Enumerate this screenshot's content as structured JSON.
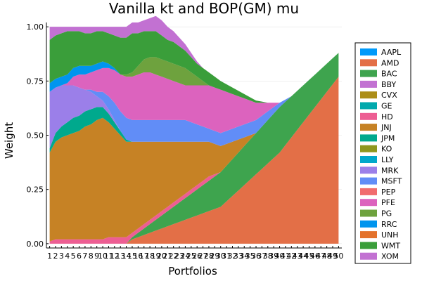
{
  "chart_data": {
    "type": "area",
    "title": "Vanilla kt and BOP(GM) mu",
    "xlabel": "Portfolios",
    "ylabel": "Weight",
    "ylim": [
      0,
      1
    ],
    "y_ticks": [
      "0.00",
      "0.25",
      "0.50",
      "0.75",
      "1.00"
    ],
    "x": [
      1,
      2,
      3,
      4,
      5,
      6,
      7,
      8,
      9,
      10,
      11,
      12,
      13,
      14,
      15,
      16,
      17,
      18,
      19,
      20,
      21,
      22,
      23,
      24,
      25,
      26,
      27,
      28,
      29,
      30,
      31,
      32,
      33,
      34,
      35,
      36,
      37,
      38,
      39,
      40,
      41,
      42,
      43,
      44,
      45,
      46,
      47,
      48,
      49,
      50
    ],
    "grid": true,
    "legend_position": "right",
    "series": [
      {
        "name": "AAPL",
        "color": "#009AFA",
        "values": [
          0,
          0,
          0,
          0,
          0,
          0,
          0,
          0,
          0,
          0,
          0,
          0,
          0,
          0,
          0,
          0,
          0,
          0,
          0,
          0,
          0,
          0,
          0,
          0,
          0,
          0,
          0,
          0,
          0,
          0,
          0,
          0,
          0,
          0,
          0,
          0,
          0,
          0,
          0,
          0,
          0,
          0,
          0,
          0,
          0,
          0,
          0,
          0,
          0,
          0
        ]
      },
      {
        "name": "AMD",
        "color": "#E36F47",
        "values": [
          0,
          0,
          0,
          0,
          0,
          0,
          0,
          0,
          0,
          0,
          0,
          0,
          0,
          0,
          0.02,
          0.03,
          0.04,
          0.05,
          0.06,
          0.07,
          0.08,
          0.09,
          0.1,
          0.11,
          0.12,
          0.13,
          0.14,
          0.15,
          0.16,
          0.17,
          0.195,
          0.22,
          0.245,
          0.27,
          0.295,
          0.32,
          0.345,
          0.37,
          0.395,
          0.42,
          0.455,
          0.49,
          0.525,
          0.56,
          0.595,
          0.63,
          0.665,
          0.7,
          0.735,
          0.77
        ]
      },
      {
        "name": "BAC",
        "color": "#3EA44E",
        "values": [
          0,
          0,
          0,
          0,
          0,
          0,
          0,
          0,
          0,
          0,
          0,
          0,
          0,
          0,
          0.01,
          0.02,
          0.03,
          0.04,
          0.05,
          0.06,
          0.07,
          0.08,
          0.09,
          0.1,
          0.11,
          0.12,
          0.13,
          0.14,
          0.15,
          0.16,
          0.165,
          0.17,
          0.175,
          0.18,
          0.185,
          0.19,
          0.195,
          0.2,
          0.205,
          0.21,
          0.2,
          0.19,
          0.18,
          0.17,
          0.16,
          0.15,
          0.14,
          0.13,
          0.12,
          0.11
        ]
      },
      {
        "name": "BBY",
        "color": "#C271D2",
        "values": [
          0,
          0,
          0,
          0,
          0,
          0,
          0,
          0,
          0,
          0,
          0,
          0,
          0,
          0,
          0,
          0,
          0,
          0,
          0,
          0,
          0,
          0,
          0,
          0,
          0,
          0,
          0,
          0,
          0,
          0,
          0,
          0,
          0,
          0,
          0,
          0,
          0,
          0,
          0,
          0,
          0,
          0,
          0,
          0,
          0,
          0,
          0,
          0,
          0,
          0
        ]
      },
      {
        "name": "CVX",
        "color": "#AC8E18",
        "values": [
          0,
          0,
          0,
          0,
          0,
          0,
          0,
          0,
          0,
          0,
          0,
          0,
          0,
          0,
          0,
          0,
          0,
          0,
          0,
          0,
          0,
          0,
          0,
          0,
          0,
          0,
          0,
          0,
          0,
          0,
          0,
          0,
          0,
          0,
          0,
          0,
          0,
          0,
          0,
          0,
          0,
          0,
          0,
          0,
          0,
          0,
          0,
          0,
          0,
          0
        ]
      },
      {
        "name": "GE",
        "color": "#00A9AD",
        "values": [
          0,
          0,
          0,
          0,
          0,
          0,
          0,
          0,
          0,
          0,
          0,
          0,
          0,
          0,
          0,
          0,
          0,
          0,
          0,
          0,
          0,
          0,
          0,
          0,
          0,
          0,
          0,
          0,
          0,
          0,
          0,
          0,
          0,
          0,
          0,
          0,
          0,
          0,
          0,
          0,
          0,
          0,
          0,
          0,
          0,
          0,
          0,
          0,
          0,
          0
        ]
      },
      {
        "name": "HD",
        "color": "#ED5E93",
        "values": [
          0.01,
          0.02,
          0.02,
          0.02,
          0.02,
          0.02,
          0.02,
          0.02,
          0.02,
          0.02,
          0.03,
          0.03,
          0.03,
          0.03,
          0.02,
          0.02,
          0.02,
          0.02,
          0.02,
          0.02,
          0.02,
          0.02,
          0.02,
          0.02,
          0.02,
          0.02,
          0.02,
          0.02,
          0.01,
          0,
          0,
          0,
          0,
          0,
          0,
          0,
          0,
          0,
          0,
          0,
          0,
          0,
          0,
          0,
          0,
          0,
          0,
          0,
          0,
          0
        ]
      },
      {
        "name": "JNJ",
        "color": "#C68225",
        "values": [
          0.41,
          0.45,
          0.47,
          0.48,
          0.49,
          0.5,
          0.52,
          0.53,
          0.55,
          0.56,
          0.53,
          0.5,
          0.47,
          0.44,
          0.42,
          0.4,
          0.38,
          0.36,
          0.34,
          0.32,
          0.3,
          0.28,
          0.26,
          0.24,
          0.22,
          0.2,
          0.18,
          0.16,
          0.14,
          0.12,
          0.1,
          0.08,
          0.06,
          0.04,
          0.02,
          0,
          0,
          0,
          0,
          0,
          0,
          0,
          0,
          0,
          0,
          0,
          0,
          0,
          0,
          0
        ]
      },
      {
        "name": "JPM",
        "color": "#00A98D",
        "values": [
          0.02,
          0.04,
          0.05,
          0.06,
          0.07,
          0.07,
          0.07,
          0.07,
          0.06,
          0.05,
          0.04,
          0.03,
          0.02,
          0.01,
          0,
          0,
          0,
          0,
          0,
          0,
          0,
          0,
          0,
          0,
          0,
          0,
          0,
          0,
          0,
          0,
          0,
          0,
          0,
          0,
          0,
          0,
          0,
          0,
          0,
          0,
          0,
          0,
          0,
          0,
          0,
          0,
          0,
          0,
          0,
          0
        ]
      },
      {
        "name": "KO",
        "color": "#8E971D",
        "values": [
          0,
          0,
          0,
          0,
          0,
          0,
          0,
          0,
          0,
          0,
          0,
          0,
          0,
          0,
          0,
          0,
          0,
          0,
          0,
          0,
          0,
          0,
          0,
          0,
          0,
          0,
          0,
          0,
          0,
          0,
          0,
          0,
          0,
          0,
          0,
          0,
          0,
          0,
          0,
          0,
          0,
          0,
          0,
          0,
          0,
          0,
          0,
          0,
          0,
          0
        ]
      },
      {
        "name": "LLY",
        "color": "#00A8CB",
        "values": [
          0,
          0,
          0,
          0,
          0,
          0,
          0,
          0,
          0,
          0,
          0,
          0,
          0,
          0,
          0,
          0,
          0,
          0,
          0,
          0,
          0,
          0,
          0,
          0,
          0,
          0,
          0,
          0,
          0,
          0,
          0,
          0,
          0,
          0,
          0,
          0,
          0,
          0,
          0,
          0,
          0,
          0,
          0,
          0,
          0,
          0,
          0,
          0,
          0,
          0
        ]
      },
      {
        "name": "MRK",
        "color": "#9B7FE9",
        "values": [
          0.26,
          0.21,
          0.19,
          0.17,
          0.15,
          0.13,
          0.1,
          0.08,
          0.05,
          0.03,
          0.02,
          0.01,
          0,
          0,
          0,
          0,
          0,
          0,
          0,
          0,
          0,
          0,
          0,
          0,
          0,
          0,
          0,
          0,
          0,
          0,
          0,
          0,
          0,
          0,
          0,
          0,
          0,
          0,
          0,
          0,
          0,
          0,
          0,
          0,
          0,
          0,
          0,
          0,
          0,
          0
        ]
      },
      {
        "name": "MSFT",
        "color": "#618DF7",
        "values": [
          0,
          0,
          0,
          0,
          0,
          0,
          0,
          0.01,
          0.02,
          0.04,
          0.06,
          0.08,
          0.09,
          0.1,
          0.1,
          0.1,
          0.1,
          0.1,
          0.1,
          0.1,
          0.1,
          0.1,
          0.1,
          0.1,
          0.09,
          0.08,
          0.07,
          0.06,
          0.06,
          0.06,
          0.06,
          0.06,
          0.06,
          0.06,
          0.06,
          0.06,
          0.05,
          0.04,
          0.03,
          0.02,
          0.01,
          0,
          0,
          0,
          0,
          0,
          0,
          0,
          0,
          0
        ]
      },
      {
        "name": "PEP",
        "color": "#F16C6E",
        "values": [
          0,
          0,
          0,
          0,
          0,
          0,
          0,
          0,
          0,
          0,
          0,
          0,
          0,
          0,
          0,
          0,
          0,
          0,
          0,
          0,
          0,
          0,
          0,
          0,
          0,
          0,
          0,
          0,
          0,
          0,
          0,
          0,
          0,
          0,
          0,
          0,
          0,
          0,
          0,
          0,
          0,
          0,
          0,
          0,
          0,
          0,
          0,
          0,
          0,
          0
        ]
      },
      {
        "name": "PFE",
        "color": "#DC63BE",
        "values": [
          0,
          0,
          0,
          0.01,
          0.04,
          0.06,
          0.07,
          0.08,
          0.1,
          0.11,
          0.13,
          0.15,
          0.17,
          0.19,
          0.2,
          0.21,
          0.22,
          0.22,
          0.21,
          0.2,
          0.19,
          0.18,
          0.17,
          0.16,
          0.17,
          0.18,
          0.19,
          0.2,
          0.2,
          0.2,
          0.18,
          0.16,
          0.14,
          0.12,
          0.1,
          0.08,
          0.06,
          0.04,
          0.02,
          0,
          0,
          0,
          0,
          0,
          0,
          0,
          0,
          0,
          0,
          0
        ]
      },
      {
        "name": "PG",
        "color": "#6EA23E",
        "values": [
          0,
          0,
          0,
          0,
          0,
          0,
          0,
          0,
          0,
          0,
          0,
          0,
          0,
          0.01,
          0.02,
          0.04,
          0.06,
          0.07,
          0.08,
          0.08,
          0.08,
          0.08,
          0.08,
          0.08,
          0.06,
          0.04,
          0.02,
          0,
          0,
          0,
          0,
          0,
          0,
          0,
          0,
          0,
          0,
          0,
          0,
          0,
          0,
          0,
          0,
          0,
          0,
          0,
          0,
          0,
          0,
          0
        ]
      },
      {
        "name": "RRC",
        "color": "#0095EE",
        "values": [
          0.04,
          0.04,
          0.04,
          0.04,
          0.04,
          0.04,
          0.04,
          0.03,
          0.03,
          0.03,
          0.02,
          0.01,
          0,
          0,
          0,
          0,
          0,
          0,
          0,
          0,
          0,
          0,
          0,
          0,
          0,
          0,
          0,
          0,
          0,
          0,
          0,
          0,
          0,
          0,
          0,
          0,
          0,
          0,
          0,
          0,
          0,
          0,
          0,
          0,
          0,
          0,
          0,
          0,
          0,
          0
        ]
      },
      {
        "name": "UNH",
        "color": "#E4722C",
        "values": [
          0,
          0,
          0,
          0,
          0,
          0,
          0,
          0,
          0,
          0,
          0,
          0,
          0,
          0,
          0,
          0,
          0,
          0,
          0,
          0,
          0,
          0,
          0,
          0,
          0,
          0,
          0,
          0,
          0,
          0,
          0,
          0,
          0,
          0,
          0,
          0,
          0,
          0,
          0,
          0,
          0,
          0,
          0,
          0,
          0,
          0,
          0,
          0,
          0,
          0
        ]
      },
      {
        "name": "WMT",
        "color": "#3A9E3A",
        "values": [
          0.2,
          0.2,
          0.2,
          0.2,
          0.17,
          0.16,
          0.15,
          0.15,
          0.15,
          0.14,
          0.14,
          0.15,
          0.17,
          0.17,
          0.18,
          0.15,
          0.13,
          0.12,
          0.12,
          0.11,
          0.1,
          0.1,
          0.09,
          0.08,
          0.07,
          0.06,
          0.06,
          0.06,
          0.05,
          0.04,
          0.035,
          0.03,
          0.025,
          0.02,
          0.015,
          0.01,
          0.005,
          0,
          0,
          0,
          0,
          0,
          0,
          0,
          0,
          0,
          0,
          0,
          0,
          0
        ]
      },
      {
        "name": "XOM",
        "color": "#C271D2",
        "values": [
          0.06,
          0.04,
          0.03,
          0.02,
          0.02,
          0.02,
          0.03,
          0.03,
          0.02,
          0.02,
          0.03,
          0.04,
          0.05,
          0.05,
          0.05,
          0.05,
          0.05,
          0.06,
          0.07,
          0.07,
          0.06,
          0.05,
          0.04,
          0.03,
          0.02,
          0.01,
          0,
          0,
          0,
          0,
          0,
          0,
          0,
          0,
          0,
          0,
          0,
          0,
          0,
          0,
          0,
          0,
          0,
          0,
          0,
          0,
          0,
          0,
          0,
          0
        ]
      }
    ]
  }
}
